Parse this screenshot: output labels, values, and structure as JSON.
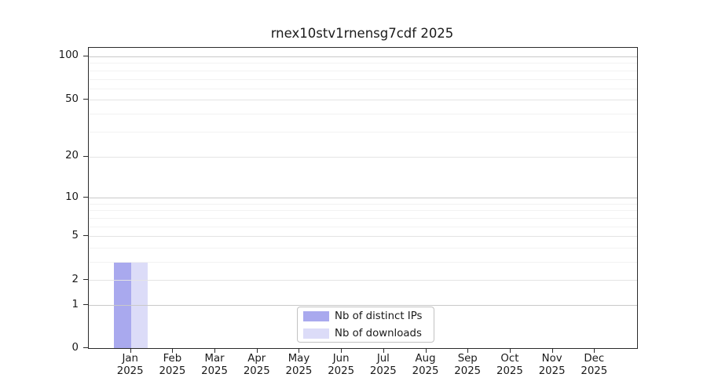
{
  "figure": {
    "background": "#ffffff"
  },
  "chart_data": {
    "type": "bar",
    "title": "rnex10stv1rnensg7cdf 2025",
    "categories": [
      "Jan",
      "Feb",
      "Mar",
      "Apr",
      "May",
      "Jun",
      "Jul",
      "Aug",
      "Sep",
      "Oct",
      "Nov",
      "Dec"
    ],
    "x_year_label": "2025",
    "series": [
      {
        "name": "Nb of distinct IPs",
        "color": "#a9a9ee",
        "values": [
          3,
          0,
          0,
          0,
          0,
          0,
          0,
          0,
          0,
          0,
          0,
          0
        ]
      },
      {
        "name": "Nb of downloads",
        "color": "#dcdcf8",
        "values": [
          3,
          0,
          0,
          0,
          0,
          0,
          0,
          0,
          0,
          0,
          0,
          0
        ]
      }
    ],
    "xlabel": "",
    "ylabel": "",
    "y_axis": {
      "scale": "symlog-like",
      "ticks": [
        0,
        1,
        2,
        5,
        10,
        20,
        50,
        100
      ],
      "major_gridlines": [
        1,
        10,
        100
      ],
      "mid_gridlines": [
        2,
        5,
        20,
        50
      ],
      "minor_gridlines": [
        3,
        4,
        6,
        7,
        8,
        9,
        30,
        40,
        60,
        70,
        80,
        90
      ],
      "ylim": [
        0,
        115
      ]
    },
    "grid": true,
    "legend_position": "lower center"
  },
  "colors": {
    "axis": "#2a2a2a",
    "text": "#1a1a1a",
    "grid_minor": "#f2f2f2",
    "grid_mid": "#e4e4e4",
    "grid_major": "#c9c9c9",
    "legend_border": "#c2c2c2"
  }
}
